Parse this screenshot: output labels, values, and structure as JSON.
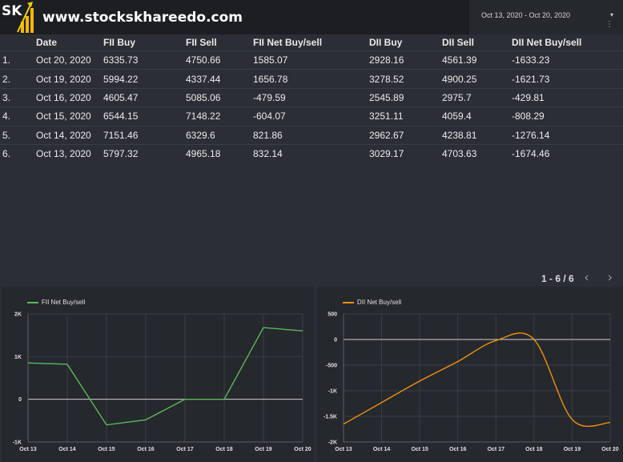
{
  "header": {
    "logo_text": "SK",
    "site_title": "www.stockskhareedo.com",
    "date_range": "Oct 13, 2020 - Oct 20, 2020",
    "caret": "▾",
    "kebab": "⋮"
  },
  "table": {
    "headers": [
      "",
      "Date",
      "FII Buy",
      "FII Sell",
      "FII Net Buy/sell",
      "DII Buy",
      "DII Sell",
      "DII Net Buy/sell"
    ],
    "rows": [
      [
        "1.",
        "Oct 20, 2020",
        "6335.73",
        "4750.66",
        "1585.07",
        "2928.16",
        "4561.39",
        "-1633.23"
      ],
      [
        "2.",
        "Oct 19, 2020",
        "5994.22",
        "4337.44",
        "1656.78",
        "3278.52",
        "4900.25",
        "-1621.73"
      ],
      [
        "3.",
        "Oct 16, 2020",
        "4605.47",
        "5085.06",
        "-479.59",
        "2545.89",
        "2975.7",
        "-429.81"
      ],
      [
        "4.",
        "Oct 15, 2020",
        "6544.15",
        "7148.22",
        "-604.07",
        "3251.11",
        "4059.4",
        "-808.29"
      ],
      [
        "5.",
        "Oct 14, 2020",
        "7151.46",
        "6329.6",
        "821.86",
        "2962.67",
        "4238.81",
        "-1276.14"
      ],
      [
        "6.",
        "Oct 13, 2020",
        "5797.32",
        "4965.18",
        "832.14",
        "3029.17",
        "4703.63",
        "-1674.46"
      ]
    ]
  },
  "pagination": {
    "label": "1 - 6 / 6",
    "prev": "‹",
    "next": "›"
  },
  "chart_data": [
    {
      "type": "line",
      "series": [
        {
          "name": "FII Net Buy/sell",
          "values": [
            850,
            820,
            -600,
            -480,
            0,
            0,
            1680,
            1600
          ],
          "color": "#5cb85c"
        }
      ],
      "x": [
        "Oct 13",
        "Oct 14",
        "Oct 15",
        "Oct 16",
        "Oct 17",
        "Oct 18",
        "Oct 19",
        "Oct 20"
      ],
      "yticks": [
        "2K",
        "1K",
        "0",
        "-1K"
      ],
      "ytick_values": [
        2000,
        1000,
        0,
        -1000
      ],
      "ylim": [
        -1000,
        2000
      ],
      "grid": true,
      "legend": "top-left"
    },
    {
      "type": "line",
      "series": [
        {
          "name": "DII Net Buy/sell",
          "values": [
            -1650,
            -1230,
            -810,
            -430,
            -20,
            0,
            -1560,
            -1620
          ],
          "color": "#f0900f"
        }
      ],
      "x": [
        "Oct 13",
        "Oct 14",
        "Oct 15",
        "Oct 16",
        "Oct 17",
        "Oct 18",
        "Oct 19",
        "Oct 20"
      ],
      "yticks": [
        "500",
        "0",
        "-500",
        "-1K",
        "-1.5K",
        "-2K"
      ],
      "ytick_values": [
        500,
        0,
        -500,
        -1000,
        -1500,
        -2000
      ],
      "ylim": [
        -2000,
        500
      ],
      "grid": true,
      "legend": "top-left"
    }
  ]
}
